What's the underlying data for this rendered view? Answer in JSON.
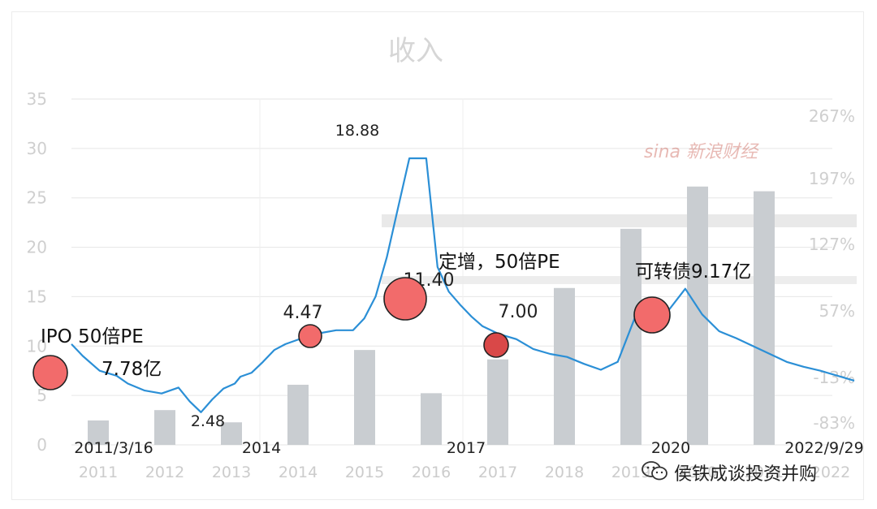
{
  "chart_data": {
    "type": "bar+line",
    "title": "收入",
    "left_axis": {
      "ticks": [
        "0",
        "5",
        "10",
        "15",
        "20",
        "25",
        "30",
        "35"
      ],
      "min": 0,
      "max": 35
    },
    "right_axis": {
      "ticks": [
        "-83%",
        "-13%",
        "57%",
        "127%",
        "197%",
        "267%"
      ]
    },
    "bar_categories": [
      "2011",
      "2012",
      "2013",
      "2014",
      "2015",
      "2016",
      "2017",
      "2018",
      "2019",
      "2020",
      "2021",
      "2022"
    ],
    "bar_values": [
      -57,
      -46,
      -59,
      -19,
      18,
      -28,
      8,
      84,
      147,
      192,
      187,
      0
    ],
    "bar_axis_range": [
      -83,
      267
    ],
    "price_date_labels": [
      "2011/3/16",
      "2014",
      "2017",
      "2020",
      "2022/9/29"
    ],
    "price_points": [
      [
        0,
        10.2
      ],
      [
        0.02,
        9.0
      ],
      [
        0.05,
        7.5
      ],
      [
        0.08,
        7.0
      ],
      [
        0.1,
        6.2
      ],
      [
        0.13,
        5.5
      ],
      [
        0.16,
        5.2
      ],
      [
        0.19,
        5.8
      ],
      [
        0.21,
        4.4
      ],
      [
        0.23,
        3.3
      ],
      [
        0.25,
        4.6
      ],
      [
        0.27,
        5.7
      ],
      [
        0.29,
        6.2
      ],
      [
        0.3,
        6.9
      ],
      [
        0.32,
        7.3
      ],
      [
        0.34,
        8.4
      ],
      [
        0.36,
        9.6
      ],
      [
        0.38,
        10.2
      ],
      [
        0.41,
        10.8
      ],
      [
        0.44,
        11.3
      ],
      [
        0.47,
        11.6
      ],
      [
        0.5,
        11.6
      ],
      [
        0.52,
        12.8
      ],
      [
        0.54,
        15.0
      ],
      [
        0.56,
        19.0
      ],
      [
        0.58,
        24.0
      ],
      [
        0.6,
        29.0
      ],
      [
        0.63,
        29.0
      ],
      [
        0.65,
        18.0
      ],
      [
        0.67,
        15.5
      ],
      [
        0.69,
        14.2
      ],
      [
        0.71,
        13.0
      ],
      [
        0.73,
        12.0
      ],
      [
        0.76,
        11.2
      ],
      [
        0.79,
        10.7
      ],
      [
        0.82,
        9.7
      ],
      [
        0.85,
        9.2
      ],
      [
        0.88,
        8.9
      ],
      [
        0.91,
        8.2
      ],
      [
        0.94,
        7.6
      ],
      [
        0.97,
        8.4
      ],
      [
        1.0,
        12.8
      ],
      [
        1.03,
        12.5
      ],
      [
        1.06,
        13.6
      ],
      [
        1.09,
        15.8
      ],
      [
        1.12,
        13.2
      ],
      [
        1.15,
        11.5
      ],
      [
        1.18,
        10.8
      ],
      [
        1.21,
        10.0
      ],
      [
        1.24,
        9.2
      ],
      [
        1.27,
        8.4
      ],
      [
        1.3,
        7.9
      ],
      [
        1.33,
        7.5
      ],
      [
        1.36,
        7.0
      ],
      [
        1.39,
        6.5
      ]
    ],
    "price_labels": [
      {
        "text": "18.88",
        "value": 18.88
      },
      {
        "text": "2.48",
        "value": 2.48
      },
      {
        "text": "4.47",
        "value": 4.47
      },
      {
        "text": "11.40",
        "value": 11.4
      },
      {
        "text": "7.00",
        "value": 7.0
      }
    ],
    "annotations": [
      {
        "text": "IPO 50倍PE",
        "subtext": "7.78亿"
      },
      {
        "text": "定增，50倍PE"
      },
      {
        "text": "可转债9.17亿"
      }
    ],
    "colors": {
      "line": "#2b8fd6",
      "bar": "#c9cdd1",
      "marker": "#f26b6b",
      "marker_dark": "#d94848",
      "grid": "#e6e6e6",
      "axis_text": "#cfcfcf"
    }
  },
  "watermarks": {
    "brand_logo": "sina 新浪财经",
    "account": "侯铁成谈投资并购"
  }
}
